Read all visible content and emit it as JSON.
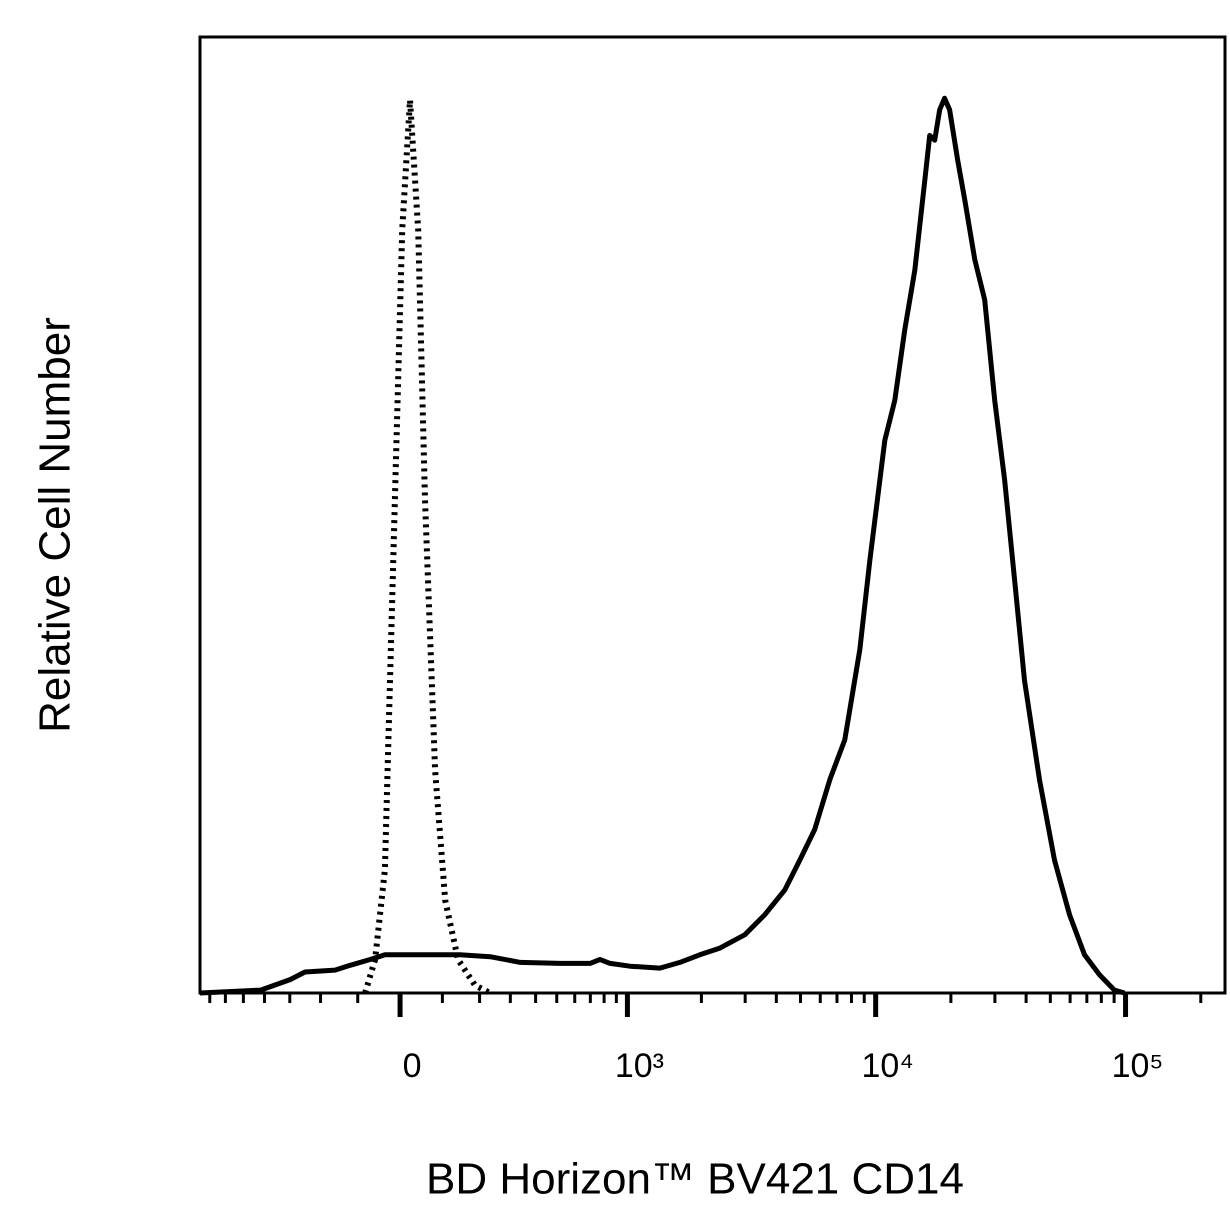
{
  "chart_data": {
    "type": "line",
    "xlabel": "BD Horizon™ BV421 CD14",
    "ylabel": "Relative Cell Number",
    "xscale": "asinh",
    "xlim": [
      -770,
      250000
    ],
    "ylim": [
      0,
      100
    ],
    "xticks": [
      0,
      {
        "value": 1000,
        "label": "10³"
      },
      {
        "value": 10000,
        "label": "10⁴"
      },
      {
        "value": 100000,
        "label": "10⁵"
      }
    ],
    "xminorticks": [
      -700,
      -600,
      -500,
      -400,
      -300,
      -200,
      -100,
      100,
      200,
      300,
      400,
      500,
      600,
      700,
      800,
      900,
      2000,
      3000,
      4000,
      5000,
      6000,
      7000,
      8000,
      9000,
      20000,
      30000,
      40000,
      50000,
      60000,
      70000,
      80000,
      90000,
      200000
    ],
    "series": [
      {
        "color": "#000000",
        "dash": "solid",
        "x": [
          -770,
          -417,
          -299,
          -248,
          -159,
          -119,
          -70,
          -35,
          46,
          145,
          232,
          337,
          517,
          698,
          769,
          848,
          1025,
          1358,
          1638,
          1970,
          2375,
          2992,
          3600,
          4330,
          4968,
          5700,
          6550,
          7520,
          8640,
          9480,
          10880,
          11930,
          13080,
          14340,
          15720,
          16460,
          17230,
          18040,
          18880,
          19770,
          21290,
          22720,
          24920,
          27320,
          29940,
          32810,
          35960,
          39410,
          45260,
          51960,
          59650,
          68500,
          78630,
          90260,
          99000
        ],
        "values": [
          0,
          0.3,
          1.4,
          2.2,
          2.4,
          2.9,
          3.5,
          4.0,
          4.0,
          4.0,
          3.8,
          3.2,
          3.1,
          3.1,
          3.5,
          3.1,
          2.8,
          2.6,
          3.2,
          4.0,
          4.7,
          6.1,
          8.2,
          10.8,
          13.9,
          17.1,
          22.3,
          26.5,
          35.9,
          45.3,
          57.8,
          62.0,
          69.4,
          75.6,
          85.0,
          89.7,
          89.2,
          92.4,
          93.6,
          92.4,
          87.1,
          83.0,
          76.7,
          72.5,
          62.0,
          53.7,
          43.2,
          32.7,
          22.3,
          13.9,
          8.2,
          4.0,
          1.9,
          0.3,
          0
        ]
      },
      {
        "color": "#000000",
        "dash": "dotted",
        "x": [
          -82,
          -58,
          -35,
          -12,
          5,
          23,
          42,
          58,
          82,
          107,
          140,
          187,
          232
        ],
        "values": [
          0,
          3.5,
          12.9,
          51.6,
          79.8,
          93.4,
          79.8,
          51.6,
          23.3,
          9.7,
          3.5,
          0.8,
          0
        ]
      }
    ]
  }
}
